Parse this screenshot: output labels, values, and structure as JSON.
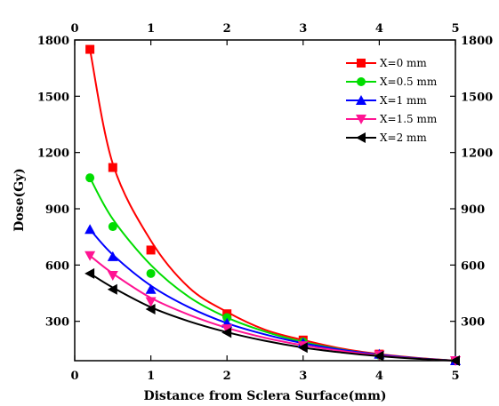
{
  "chart_data": {
    "type": "scatter",
    "xlabel": "Distance from Sclera Surface(mm)",
    "ylabel": "Dose(Gy)",
    "xlim": [
      0,
      5
    ],
    "ylim": [
      90,
      1800
    ],
    "x_ticks": [
      "0",
      "1",
      "2",
      "3",
      "4",
      "5"
    ],
    "y_ticks": [
      "300",
      "600",
      "900",
      "1200",
      "1500",
      "1800"
    ],
    "grid": false,
    "legend_position": "top-right",
    "mirror_axes": true,
    "series": [
      {
        "name": "X=0 mm",
        "color": "#ff0000",
        "marker": "square",
        "x": [
          0.2,
          0.5,
          1,
          2,
          3,
          4,
          5
        ],
        "y": [
          1750,
          1120,
          680,
          340,
          200,
          125,
          90
        ],
        "fit": [
          [
            0.2,
            1750
          ],
          [
            0.5,
            1140
          ],
          [
            1,
            730
          ],
          [
            1.5,
            480
          ],
          [
            2,
            350
          ],
          [
            2.5,
            255
          ],
          [
            3,
            200
          ],
          [
            3.5,
            155
          ],
          [
            4,
            125
          ],
          [
            4.5,
            105
          ],
          [
            5,
            90
          ]
        ]
      },
      {
        "name": "X=0.5 mm",
        "color": "#00dd00",
        "marker": "circle",
        "x": [
          0.2,
          0.5,
          1,
          2,
          3,
          4,
          5
        ],
        "y": [
          1065,
          805,
          555,
          320,
          190,
          120,
          90
        ],
        "fit": [
          [
            0.2,
            1065
          ],
          [
            0.5,
            845
          ],
          [
            1,
            600
          ],
          [
            1.5,
            430
          ],
          [
            2,
            320
          ],
          [
            2.5,
            245
          ],
          [
            3,
            190
          ],
          [
            3.5,
            150
          ],
          [
            4,
            122
          ],
          [
            4.5,
            103
          ],
          [
            5,
            90
          ]
        ]
      },
      {
        "name": "X=1 mm",
        "color": "#0000ff",
        "marker": "triangle-up",
        "x": [
          0.2,
          0.5,
          1,
          2,
          3,
          4,
          5
        ],
        "y": [
          790,
          645,
          470,
          290,
          185,
          125,
          90
        ],
        "fit": [
          [
            0.2,
            790
          ],
          [
            0.5,
            655
          ],
          [
            1,
            490
          ],
          [
            1.5,
            375
          ],
          [
            2,
            290
          ],
          [
            2.5,
            230
          ],
          [
            3,
            183
          ],
          [
            3.5,
            148
          ],
          [
            4,
            122
          ],
          [
            4.5,
            103
          ],
          [
            5,
            90
          ]
        ]
      },
      {
        "name": "X=1.5 mm",
        "color": "#ff1493",
        "marker": "triangle-down",
        "x": [
          0.2,
          0.5,
          1,
          2,
          3,
          4,
          5
        ],
        "y": [
          650,
          545,
          405,
          260,
          170,
          120,
          90
        ],
        "fit": [
          [
            0.2,
            650
          ],
          [
            0.5,
            555
          ],
          [
            1,
            425
          ],
          [
            1.5,
            335
          ],
          [
            2,
            265
          ],
          [
            2.5,
            212
          ],
          [
            3,
            172
          ],
          [
            3.5,
            142
          ],
          [
            4,
            118
          ],
          [
            4.5,
            101
          ],
          [
            5,
            90
          ]
        ]
      },
      {
        "name": "X=2 mm",
        "color": "#000000",
        "marker": "triangle-left",
        "x": [
          0.2,
          0.5,
          1,
          2,
          3,
          4,
          5
        ],
        "y": [
          555,
          470,
          365,
          240,
          160,
          115,
          90
        ],
        "fit": [
          [
            0.2,
            555
          ],
          [
            0.5,
            480
          ],
          [
            1,
            375
          ],
          [
            1.5,
            300
          ],
          [
            2,
            242
          ],
          [
            2.5,
            196
          ],
          [
            3,
            160
          ],
          [
            3.5,
            134
          ],
          [
            4,
            114
          ],
          [
            4.5,
            100
          ],
          [
            5,
            90
          ]
        ]
      }
    ]
  }
}
